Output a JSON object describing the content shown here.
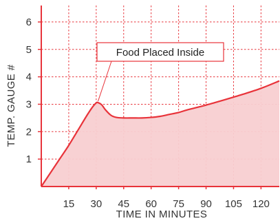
{
  "chart_data": {
    "type": "area",
    "title": "",
    "xlabel": "TIME IN MINUTES",
    "ylabel": "TEMP. GAUGE #",
    "xlim": [
      0,
      130
    ],
    "ylim": [
      0,
      6.6
    ],
    "x_ticks": [
      15,
      30,
      45,
      60,
      75,
      90,
      105,
      120
    ],
    "y_ticks": [
      1,
      2,
      3,
      4,
      5,
      6
    ],
    "x_tick_labels": [
      "15",
      "30",
      "45",
      "60",
      "75",
      "90",
      "105",
      "120"
    ],
    "y_tick_labels": [
      "1",
      "2",
      "3",
      "4",
      "5",
      "6"
    ],
    "grid": true,
    "line_color": "#e8333a",
    "fill_color": "#f8cfd1",
    "series": [
      {
        "x": [
          0,
          5,
          10,
          15,
          20,
          25,
          28,
          30,
          31,
          33,
          35,
          38,
          41,
          45,
          50,
          55,
          60,
          65,
          70,
          75,
          80,
          90,
          100,
          110,
          120,
          130
        ],
        "values": [
          0,
          0.5,
          1.0,
          1.5,
          2.05,
          2.6,
          2.9,
          3.05,
          3.06,
          2.98,
          2.8,
          2.6,
          2.52,
          2.5,
          2.5,
          2.5,
          2.52,
          2.56,
          2.63,
          2.7,
          2.8,
          2.97,
          3.16,
          3.36,
          3.58,
          3.85
        ]
      }
    ],
    "annotations": [
      {
        "text": "Food Placed Inside",
        "x": 31,
        "y": 3.06
      }
    ]
  }
}
